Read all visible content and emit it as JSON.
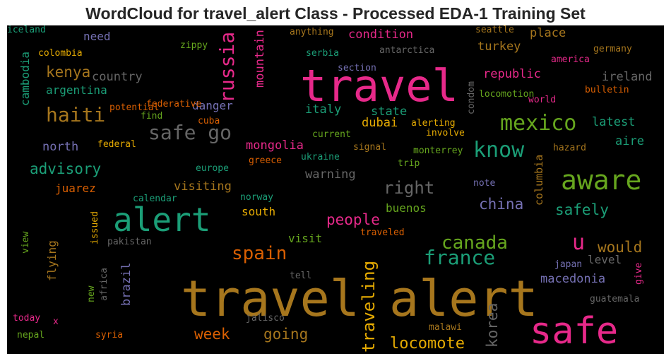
{
  "title": "WordCloud for travel_alert Class - Processed EDA-1 Training Set",
  "colors": {
    "pink": "#e7298a",
    "green": "#1b9e77",
    "gold": "#a6761d",
    "lime": "#66a61e",
    "orange": "#d95f02",
    "purple": "#7570b3",
    "gray": "#666666",
    "yellow": "#e6ab02"
  },
  "words": [
    {
      "text": "travel alert",
      "color": "gold"
    },
    {
      "text": "travel",
      "color": "pink"
    },
    {
      "text": "alert",
      "color": "green"
    },
    {
      "text": "safe",
      "color": "pink"
    },
    {
      "text": "aware",
      "color": "lime"
    },
    {
      "text": "mexico",
      "color": "lime"
    },
    {
      "text": "know",
      "color": "green"
    },
    {
      "text": "safe go",
      "color": "gray"
    },
    {
      "text": "haiti",
      "color": "gold"
    },
    {
      "text": "russia",
      "color": "pink"
    },
    {
      "text": "spain",
      "color": "orange"
    },
    {
      "text": "france",
      "color": "green"
    },
    {
      "text": "canada",
      "color": "lime"
    },
    {
      "text": "u",
      "color": "pink"
    },
    {
      "text": "traveling",
      "color": "yellow"
    },
    {
      "text": "locomote",
      "color": "yellow"
    },
    {
      "text": "right",
      "color": "gray"
    },
    {
      "text": "kenya",
      "color": "gold"
    },
    {
      "text": "advisory",
      "color": "green"
    },
    {
      "text": "people",
      "color": "pink"
    },
    {
      "text": "china",
      "color": "purple"
    },
    {
      "text": "safely",
      "color": "green"
    },
    {
      "text": "would",
      "color": "gold"
    },
    {
      "text": "going",
      "color": "gold"
    },
    {
      "text": "week",
      "color": "orange"
    },
    {
      "text": "korea",
      "color": "gray"
    },
    {
      "text": "macedonia",
      "color": "purple"
    },
    {
      "text": "mountain",
      "color": "pink"
    },
    {
      "text": "condition",
      "color": "pink"
    },
    {
      "text": "place",
      "color": "gold"
    },
    {
      "text": "turkey",
      "color": "gold"
    },
    {
      "text": "republic",
      "color": "pink"
    },
    {
      "text": "ireland",
      "color": "gray"
    },
    {
      "text": "country",
      "color": "gray"
    },
    {
      "text": "argentina",
      "color": "green"
    },
    {
      "text": "danger",
      "color": "purple"
    },
    {
      "text": "italy",
      "color": "green"
    },
    {
      "text": "state",
      "color": "green"
    },
    {
      "text": "dubai",
      "color": "yellow"
    },
    {
      "text": "latest",
      "color": "green"
    },
    {
      "text": "aire",
      "color": "green"
    },
    {
      "text": "north",
      "color": "purple"
    },
    {
      "text": "mongolia",
      "color": "pink"
    },
    {
      "text": "warning",
      "color": "gray"
    },
    {
      "text": "visiting",
      "color": "gold"
    },
    {
      "text": "juarez",
      "color": "orange"
    },
    {
      "text": "south",
      "color": "yellow"
    },
    {
      "text": "visit",
      "color": "lime"
    },
    {
      "text": "buenos",
      "color": "lime"
    },
    {
      "text": "level",
      "color": "gray"
    },
    {
      "text": "brazil",
      "color": "purple"
    },
    {
      "text": "flying",
      "color": "gold"
    },
    {
      "text": "columbia",
      "color": "gold"
    },
    {
      "text": "need",
      "color": "purple"
    },
    {
      "text": "cambodia",
      "color": "green"
    },
    {
      "text": "colombia",
      "color": "yellow"
    },
    {
      "text": "zippy",
      "color": "lime"
    },
    {
      "text": "anything",
      "color": "gold"
    },
    {
      "text": "serbia",
      "color": "green"
    },
    {
      "text": "antarctica",
      "color": "gray"
    },
    {
      "text": "seattle",
      "color": "gold"
    },
    {
      "text": "germany",
      "color": "gold"
    },
    {
      "text": "america",
      "color": "pink"
    },
    {
      "text": "section",
      "color": "purple"
    },
    {
      "text": "condom",
      "color": "gray"
    },
    {
      "text": "locomotion",
      "color": "lime"
    },
    {
      "text": "world",
      "color": "pink"
    },
    {
      "text": "bulletin",
      "color": "orange"
    },
    {
      "text": "federative",
      "color": "orange"
    },
    {
      "text": "potential",
      "color": "orange"
    },
    {
      "text": "find",
      "color": "lime"
    },
    {
      "text": "cuba",
      "color": "orange"
    },
    {
      "text": "alerting",
      "color": "yellow"
    },
    {
      "text": "involve",
      "color": "yellow"
    },
    {
      "text": "current",
      "color": "lime"
    },
    {
      "text": "federal",
      "color": "yellow"
    },
    {
      "text": "hazard",
      "color": "gold"
    },
    {
      "text": "signal",
      "color": "gold"
    },
    {
      "text": "monterrey",
      "color": "lime"
    },
    {
      "text": "ukraine",
      "color": "green"
    },
    {
      "text": "greece",
      "color": "orange"
    },
    {
      "text": "trip",
      "color": "lime"
    },
    {
      "text": "europe",
      "color": "green"
    },
    {
      "text": "note",
      "color": "purple"
    },
    {
      "text": "norway",
      "color": "green"
    },
    {
      "text": "calendar",
      "color": "green"
    },
    {
      "text": "issued",
      "color": "yellow"
    },
    {
      "text": "view",
      "color": "lime"
    },
    {
      "text": "pakistan",
      "color": "gray"
    },
    {
      "text": "traveled",
      "color": "orange"
    },
    {
      "text": "japan",
      "color": "purple"
    },
    {
      "text": "give",
      "color": "pink"
    },
    {
      "text": "tell",
      "color": "gray"
    },
    {
      "text": "new",
      "color": "lime"
    },
    {
      "text": "africa",
      "color": "gray"
    },
    {
      "text": "guatemala",
      "color": "gray"
    },
    {
      "text": "today",
      "color": "pink"
    },
    {
      "text": "x",
      "color": "pink"
    },
    {
      "text": "jalisco",
      "color": "gray"
    },
    {
      "text": "malawi",
      "color": "gold"
    },
    {
      "text": "nepal",
      "color": "lime"
    },
    {
      "text": "syria",
      "color": "orange"
    },
    {
      "text": "iceland",
      "color": "green"
    }
  ]
}
